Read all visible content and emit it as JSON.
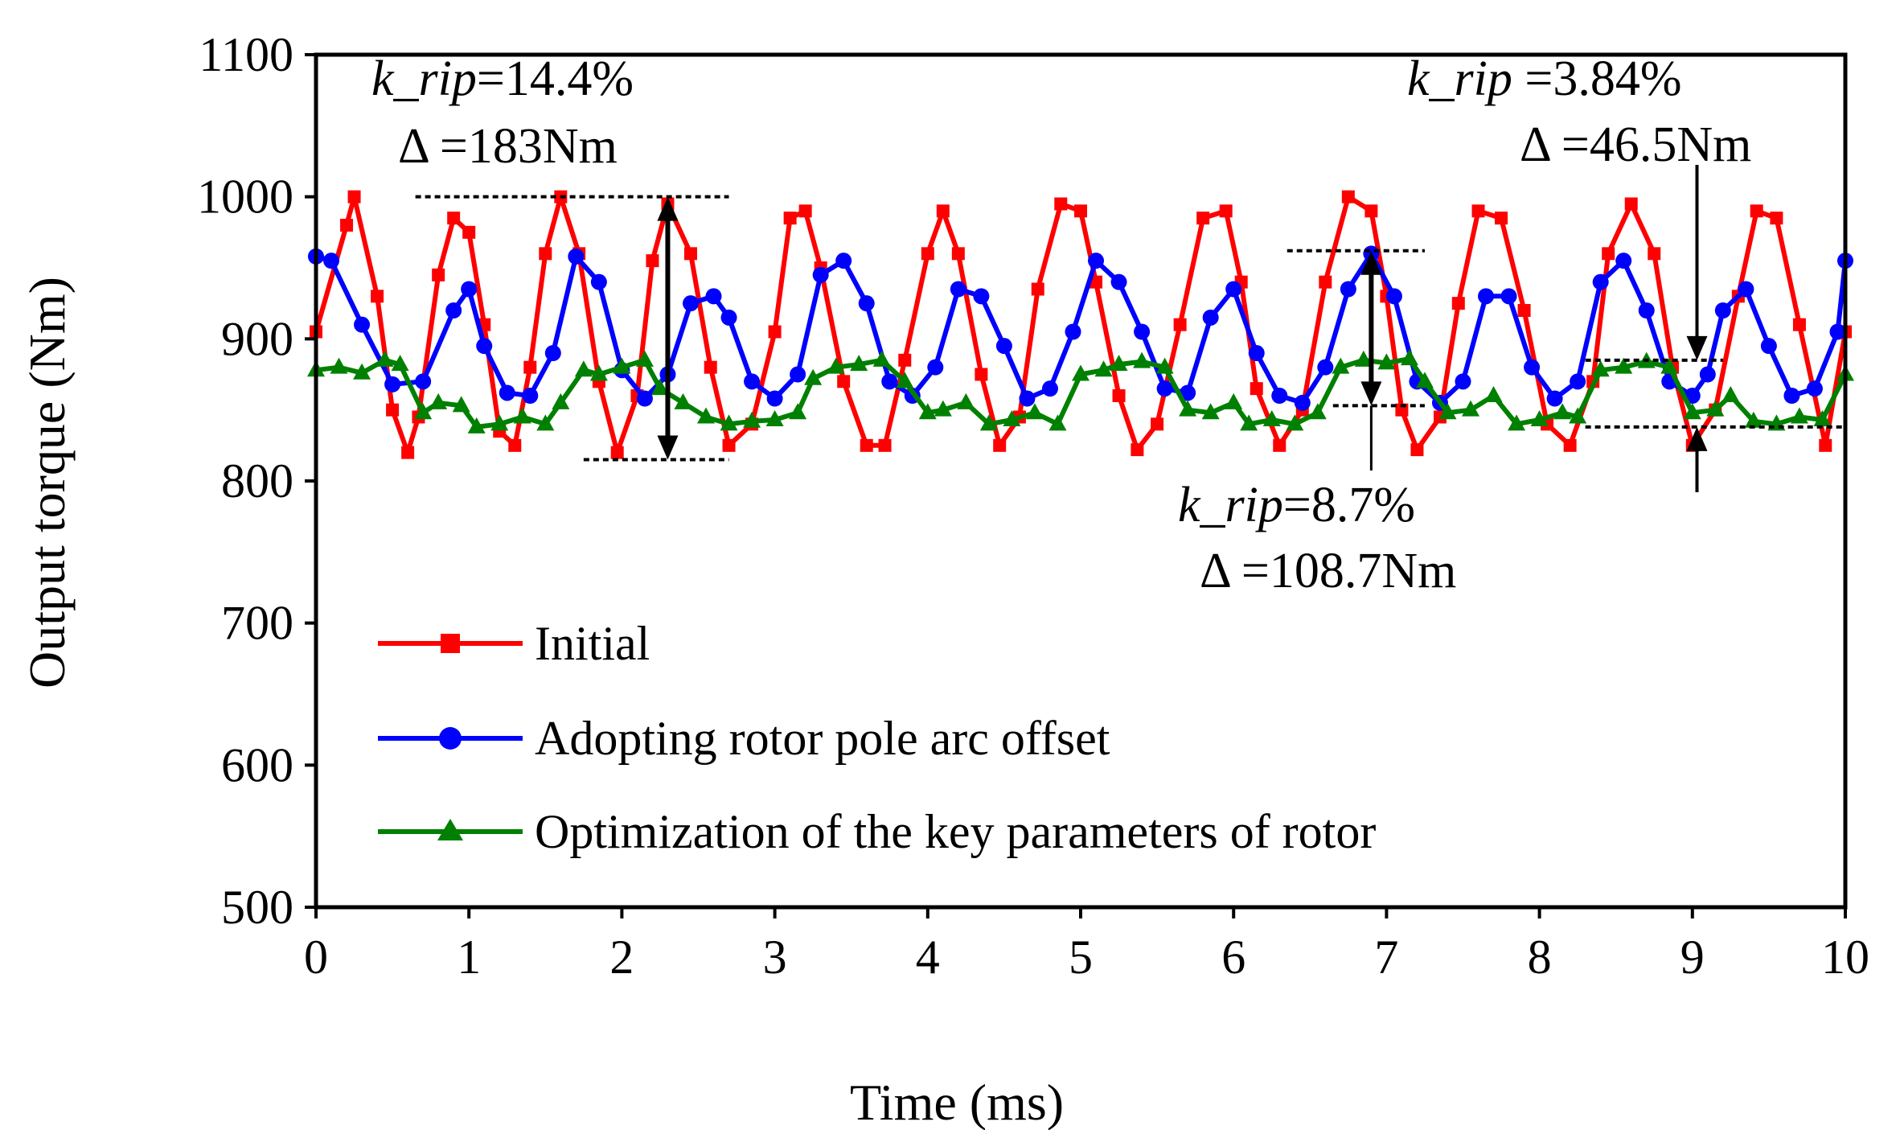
{
  "chart_data": {
    "type": "line",
    "xlabel": "Time (ms)",
    "ylabel": "Output torque (Nm)",
    "xlim": [
      0,
      10
    ],
    "ylim": [
      500,
      1100
    ],
    "xticks": [
      0,
      1,
      2,
      3,
      4,
      5,
      6,
      7,
      8,
      9,
      10
    ],
    "yticks": [
      500,
      600,
      700,
      800,
      900,
      1000,
      1100
    ],
    "grid": false,
    "legend_position": "lower-left",
    "series": [
      {
        "name": "Initial",
        "color": "#FF0000",
        "marker": "square",
        "x": [
          0,
          0.2,
          0.25,
          0.4,
          0.5,
          0.6,
          0.67,
          0.8,
          0.9,
          1.0,
          1.1,
          1.2,
          1.3,
          1.4,
          1.5,
          1.6,
          1.72,
          1.85,
          1.97,
          2.1,
          2.2,
          2.3,
          2.45,
          2.58,
          2.7,
          2.85,
          3.0,
          3.1,
          3.2,
          3.3,
          3.45,
          3.6,
          3.72,
          3.85,
          4.0,
          4.1,
          4.2,
          4.35,
          4.47,
          4.6,
          4.72,
          4.87,
          5.0,
          5.1,
          5.25,
          5.37,
          5.5,
          5.65,
          5.8,
          5.95,
          6.05,
          6.15,
          6.3,
          6.45,
          6.6,
          6.75,
          6.9,
          7.0,
          7.1,
          7.2,
          7.35,
          7.47,
          7.6,
          7.75,
          7.9,
          8.05,
          8.2,
          8.35,
          8.45,
          8.6,
          8.75,
          8.87,
          9.0,
          9.15,
          9.3,
          9.42,
          9.55,
          9.7,
          9.87,
          10.0
        ],
        "values": [
          905,
          980,
          1000,
          930,
          850,
          820,
          845,
          945,
          985,
          975,
          910,
          835,
          825,
          880,
          960,
          1000,
          960,
          870,
          820,
          860,
          955,
          995,
          960,
          880,
          825,
          840,
          905,
          985,
          990,
          950,
          870,
          825,
          825,
          885,
          960,
          990,
          960,
          875,
          825,
          845,
          935,
          995,
          990,
          940,
          860,
          822,
          840,
          910,
          985,
          990,
          940,
          865,
          825,
          850,
          940,
          1000,
          990,
          930,
          850,
          822,
          845,
          925,
          990,
          985,
          920,
          840,
          825,
          870,
          960,
          995,
          960,
          880,
          825,
          850,
          930,
          990,
          985,
          910,
          825,
          905
        ]
      },
      {
        "name": "Adopting rotor pole arc offset",
        "color": "#0000FF",
        "marker": "circle",
        "x": [
          0,
          0.1,
          0.3,
          0.5,
          0.7,
          0.9,
          1.0,
          1.1,
          1.25,
          1.4,
          1.55,
          1.7,
          1.85,
          2.0,
          2.15,
          2.3,
          2.45,
          2.6,
          2.7,
          2.85,
          3.0,
          3.15,
          3.3,
          3.45,
          3.6,
          3.75,
          3.9,
          4.05,
          4.2,
          4.35,
          4.5,
          4.65,
          4.8,
          4.95,
          5.1,
          5.25,
          5.4,
          5.55,
          5.7,
          5.85,
          6.0,
          6.15,
          6.3,
          6.45,
          6.6,
          6.75,
          6.9,
          7.05,
          7.2,
          7.35,
          7.5,
          7.65,
          7.8,
          7.95,
          8.1,
          8.25,
          8.4,
          8.55,
          8.7,
          8.85,
          9.0,
          9.1,
          9.2,
          9.35,
          9.5,
          9.65,
          9.8,
          9.95,
          10.0
        ],
        "values": [
          958,
          955,
          910,
          868,
          870,
          920,
          935,
          895,
          862,
          860,
          890,
          958,
          940,
          878,
          858,
          875,
          925,
          930,
          915,
          870,
          858,
          875,
          945,
          955,
          925,
          870,
          860,
          880,
          935,
          930,
          895,
          858,
          865,
          905,
          955,
          940,
          905,
          865,
          862,
          915,
          935,
          890,
          860,
          855,
          880,
          935,
          960,
          930,
          870,
          855,
          870,
          930,
          930,
          880,
          858,
          870,
          940,
          955,
          920,
          870,
          860,
          875,
          920,
          935,
          895,
          860,
          865,
          905,
          955
        ]
      },
      {
        "name": "Optimization of the key parameters of rotor",
        "color": "#008000",
        "marker": "triangle",
        "x": [
          0,
          0.15,
          0.3,
          0.45,
          0.55,
          0.7,
          0.8,
          0.95,
          1.05,
          1.2,
          1.35,
          1.5,
          1.6,
          1.75,
          1.85,
          2.0,
          2.15,
          2.25,
          2.4,
          2.55,
          2.7,
          2.85,
          3.0,
          3.15,
          3.25,
          3.4,
          3.55,
          3.7,
          3.85,
          4.0,
          4.1,
          4.25,
          4.4,
          4.55,
          4.7,
          4.85,
          5.0,
          5.15,
          5.25,
          5.4,
          5.55,
          5.7,
          5.85,
          6.0,
          6.1,
          6.25,
          6.4,
          6.55,
          6.7,
          6.85,
          7.0,
          7.15,
          7.25,
          7.4,
          7.55,
          7.7,
          7.85,
          8.0,
          8.15,
          8.25,
          8.4,
          8.55,
          8.7,
          8.85,
          9.0,
          9.15,
          9.25,
          9.4,
          9.55,
          9.7,
          9.85,
          10.0
        ],
        "values": [
          878,
          880,
          876,
          885,
          882,
          848,
          855,
          853,
          838,
          840,
          845,
          840,
          855,
          878,
          875,
          880,
          885,
          865,
          855,
          845,
          840,
          842,
          843,
          848,
          872,
          880,
          882,
          885,
          870,
          848,
          850,
          855,
          840,
          843,
          848,
          840,
          875,
          878,
          882,
          884,
          880,
          850,
          848,
          855,
          840,
          843,
          840,
          848,
          880,
          885,
          883,
          886,
          870,
          848,
          850,
          860,
          840,
          843,
          848,
          845,
          878,
          880,
          884,
          880,
          848,
          850,
          860,
          842,
          840,
          845,
          843,
          875
        ]
      }
    ],
    "annotations": [
      {
        "k_label": "k_rip",
        "k_value": "=14.4%",
        "delta_label": "Δ",
        "delta_value": "=183Nm",
        "arrow_x": 2.3,
        "y_top": 1000,
        "y_bottom": 815
      },
      {
        "k_label": "k_rip",
        "k_value": "=8.7%",
        "delta_label": "Δ",
        "delta_value": "=108.7Nm",
        "arrow_x": 6.9,
        "y_top": 962,
        "y_bottom": 853
      },
      {
        "k_label": "k_rip",
        "k_value": " =3.84%",
        "delta_label": "Δ",
        "delta_value": "=46.5Nm",
        "arrow_x": 9.03,
        "y_top": 885,
        "y_bottom": 838
      }
    ]
  }
}
